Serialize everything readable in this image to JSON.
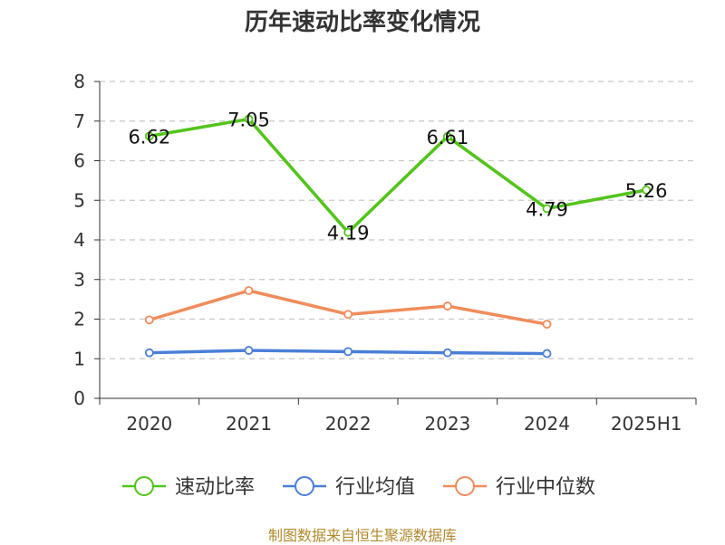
{
  "chart_data": {
    "type": "line",
    "title": "历年速动比率变化情况",
    "categories": [
      "2020",
      "2021",
      "2022",
      "2023",
      "2024",
      "2025H1"
    ],
    "ylim": [
      0,
      8
    ],
    "yticks": [
      0,
      1,
      2,
      3,
      4,
      5,
      6,
      7,
      8
    ],
    "grid": true,
    "legend_position": "bottom",
    "series": [
      {
        "name": "速动比率",
        "color": "#52c41a",
        "values": [
          6.62,
          7.05,
          4.19,
          6.61,
          4.79,
          5.26
        ],
        "labels": [
          "6.62",
          "7.05",
          "4.19",
          "6.61",
          "4.79",
          "5.26"
        ]
      },
      {
        "name": "行业均值",
        "color": "#4a7fd8",
        "values": [
          1.15,
          1.21,
          1.18,
          1.15,
          1.13,
          null
        ]
      },
      {
        "name": "行业中位数",
        "color": "#f08c5a",
        "values": [
          1.98,
          2.72,
          2.12,
          2.33,
          1.87,
          null
        ]
      }
    ]
  },
  "source_text": "制图数据来自恒生聚源数据库"
}
